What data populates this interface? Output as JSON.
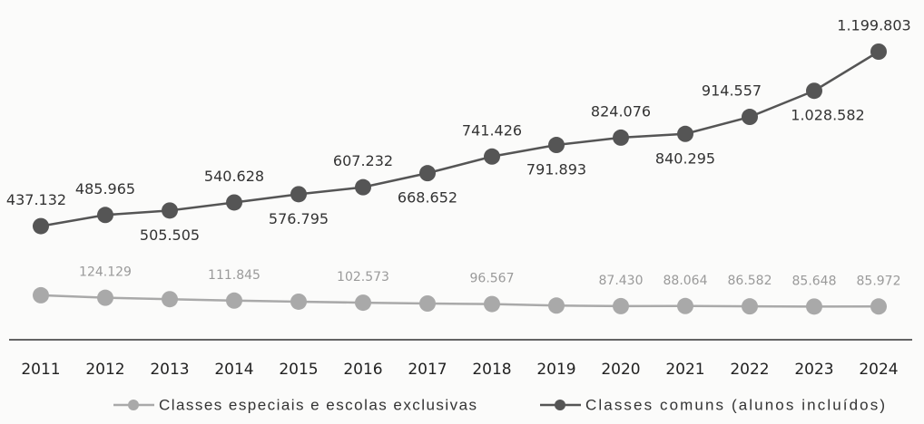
{
  "chart_data": {
    "type": "line",
    "categories": [
      "2011",
      "2012",
      "2013",
      "2014",
      "2015",
      "2016",
      "2017",
      "2018",
      "2019",
      "2020",
      "2021",
      "2022",
      "2023",
      "2024"
    ],
    "series": [
      {
        "name": "Classes especiais e escolas exclusivas",
        "color": "#a9a9a9",
        "values": [
          135000,
          124129,
          118000,
          111845,
          107000,
          102573,
          99000,
          96567,
          90000,
          87430,
          88064,
          86582,
          85648,
          85972
        ],
        "value_labels": [
          null,
          "124.129",
          null,
          "111.845",
          null,
          "102.573",
          null,
          "96.567",
          null,
          "87.430",
          "88.064",
          "86.582",
          "85.648",
          "85.972"
        ]
      },
      {
        "name": "Classes comuns (alunos incluídos)",
        "color": "#555555",
        "values": [
          437132,
          485965,
          505505,
          540628,
          576795,
          607232,
          668652,
          741426,
          791893,
          824076,
          840295,
          914557,
          1028582,
          1199803
        ],
        "value_labels": [
          "437.132",
          "485.965",
          "505.505",
          "540.628",
          "576.795",
          "607.232",
          "668.652",
          "741.426",
          "791.893",
          "824.076",
          "840.295",
          "914.557",
          "1.028.582",
          "1.199.803"
        ]
      }
    ]
  }
}
